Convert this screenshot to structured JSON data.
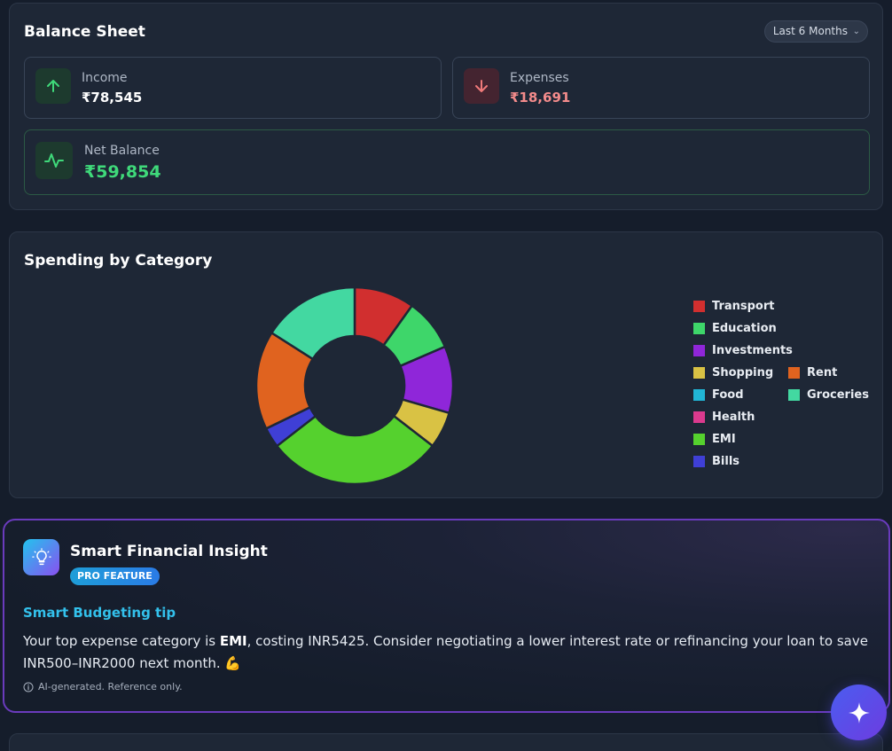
{
  "balance_sheet": {
    "title": "Balance Sheet",
    "period": "Last 6 Months",
    "income": {
      "label": "Income",
      "value": "₹78,545"
    },
    "expenses": {
      "label": "Expenses",
      "value": "₹18,691"
    },
    "net": {
      "label": "Net Balance",
      "value": "₹59,854"
    }
  },
  "spending": {
    "title": "Spending by Category"
  },
  "chart_data": {
    "type": "pie",
    "title": "Spending by Category",
    "categories": [
      "Transport",
      "Education",
      "Investments",
      "Shopping",
      "Food",
      "Health",
      "EMI",
      "Bills",
      "Rent",
      "Groceries"
    ],
    "values": [
      1850,
      1610,
      2050,
      1120,
      0,
      0,
      5425,
      620,
      3030,
      2986
    ],
    "colors": [
      "#d12f2f",
      "#3ed66a",
      "#8f26d9",
      "#d9c244",
      "#21b6d6",
      "#db3a8e",
      "#55d12e",
      "#3f3fd6",
      "#e0631f",
      "#43d8a1"
    ],
    "draw_order": [
      "Transport",
      "Education",
      "Investments",
      "Shopping",
      "EMI",
      "Bills",
      "Rent",
      "Groceries"
    ],
    "legend_position": "right"
  },
  "insight": {
    "title": "Smart Financial Insight",
    "badge": "PRO FEATURE",
    "tip_title": "Smart Budgeting tip",
    "body_prefix": "Your top expense category is ",
    "body_highlight": "EMI",
    "body_suffix": ", costing INR5425. Consider negotiating a lower interest rate or refinancing your loan to save INR500–INR2000 next month. 💪",
    "note": "AI-generated. Reference only."
  }
}
